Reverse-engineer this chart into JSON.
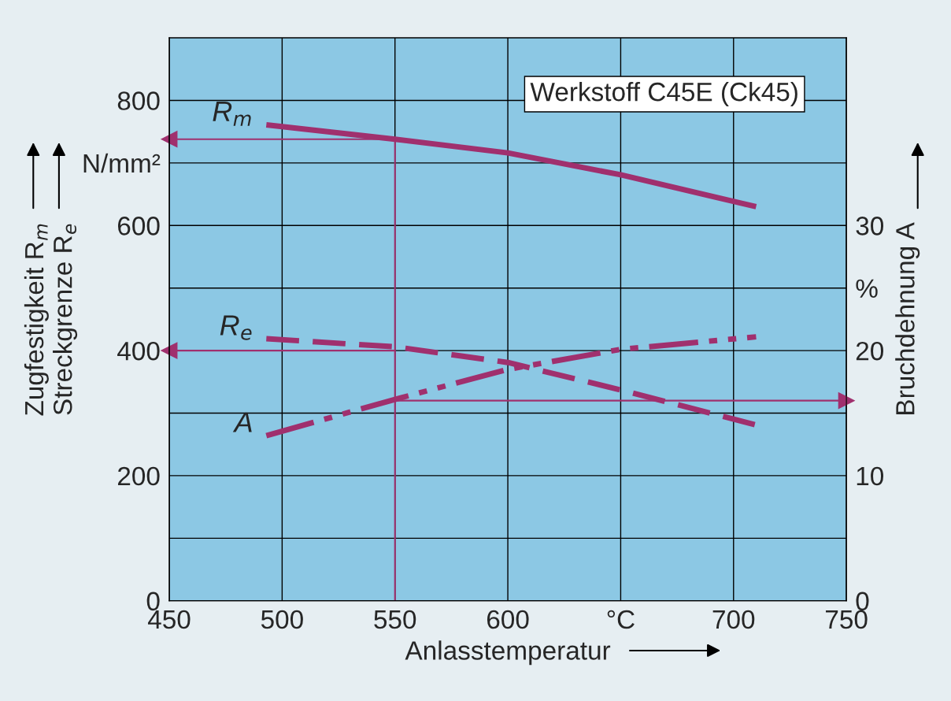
{
  "chart_data": {
    "type": "line",
    "xlabel": "Anlasstemperatur",
    "ylabel": "Zugfestigkeit R$_{m}$\nStreckgrenze R$_{e}$",
    "y2label": "Bruchdehnung A",
    "annotations": [
      "Werkstoff C45E (Ck45)"
    ],
    "x": [
      493,
      550,
      600,
      650,
      710
    ],
    "series": [
      {
        "name": "R$_{m}$",
        "color": "#a0306e",
        "values": [
          761,
          738,
          716,
          681,
          630
        ],
        "line_style": "solid"
      },
      {
        "name": "R$_{e}$",
        "color": "#a0306e",
        "values": [
          419,
          406,
          381,
          337,
          281
        ],
        "line_style": "dashed"
      },
      {
        "name": "A",
        "color": "#a0306e",
        "values": [
          13.2,
          16.1,
          18.5,
          20.1,
          21.1
        ],
        "line_style": "dashdot",
        "axis": "y2"
      }
    ],
    "xlim": [
      450,
      750
    ],
    "xticks": [
      450,
      500,
      550,
      600,
      {
        "value": 650,
        "label": "°C"
      },
      700,
      750
    ],
    "ylim": [
      0,
      900
    ],
    "yticks": [
      0,
      {
        "value": 100,
        "label": null
      },
      200,
      {
        "value": 300,
        "label": null
      },
      400,
      {
        "value": 500,
        "label": null
      },
      600,
      {
        "value": 700,
        "label": "N/mm²"
      },
      800
    ],
    "y2lim": [
      0,
      45
    ],
    "y2ticks": [
      0,
      10,
      20,
      {
        "value": 25,
        "label": "%"
      },
      30
    ],
    "ref_lines": [
      {
        "axis": "x",
        "value": 550,
        "color": "#a0306e"
      },
      {
        "axis": "y",
        "value": 738,
        "color": "#a0306e"
      },
      {
        "axis": "y",
        "value": 400,
        "color": "#a0306e"
      },
      {
        "axis": "y2",
        "value": 16,
        "color": "#a0306e"
      }
    ],
    "grid": true,
    "legend": false
  }
}
